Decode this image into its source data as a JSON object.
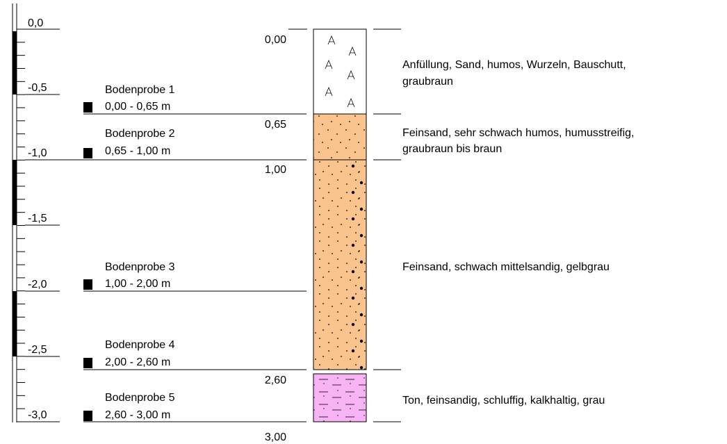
{
  "depth_scale": {
    "labels": [
      "0,0",
      "-0,5",
      "-1,0",
      "-1,5",
      "-2,0",
      "-2,5",
      "-3,0"
    ]
  },
  "samples": [
    {
      "name": "Bodenprobe 1",
      "range": "0,00 - 0,65 m"
    },
    {
      "name": "Bodenprobe 2",
      "range": "0,65 - 1,00 m"
    },
    {
      "name": "Bodenprobe 3",
      "range": "1,00 - 2,00 m"
    },
    {
      "name": "Bodenprobe 4",
      "range": "2,00 - 2,60 m"
    },
    {
      "name": "Bodenprobe 5",
      "range": "2,60 - 3,00 m"
    }
  ],
  "depth_labels": [
    "0,00",
    "0,65",
    "1,00",
    "2,60",
    "3,00"
  ],
  "layers": [
    {
      "description": [
        "Anfüllung, Sand, humos, Wurzeln, Bauschutt,",
        "graubraun"
      ]
    },
    {
      "description": [
        "Feinsand, sehr schwach humos, humusstreifig,",
        "graubraun bis braun"
      ]
    },
    {
      "description": [
        "Feinsand, schwach mittelsandig, gelbgrau"
      ]
    },
    {
      "description": [
        "Ton, feinsandig, schluffig, kalkhaltig, grau"
      ]
    }
  ]
}
